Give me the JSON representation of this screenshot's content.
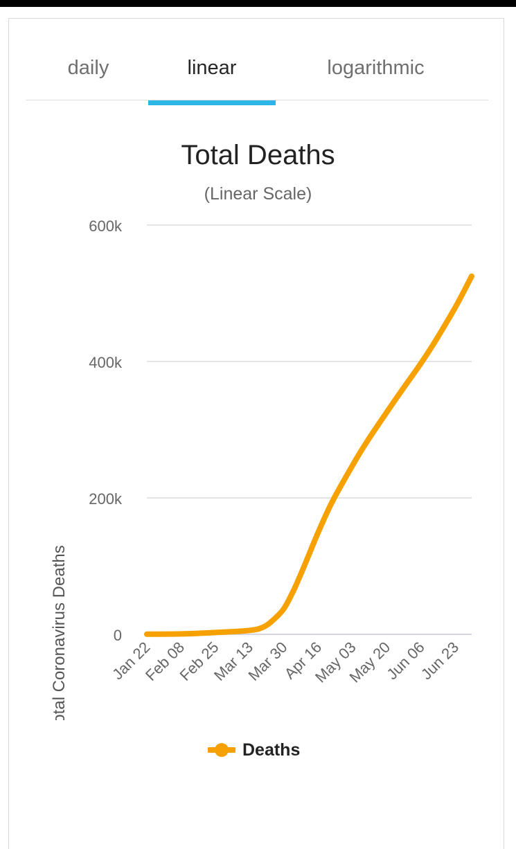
{
  "tabs": [
    {
      "label": "daily",
      "active": false
    },
    {
      "label": "linear",
      "active": true
    },
    {
      "label": "logarithmic",
      "active": false
    }
  ],
  "colors": {
    "accent": "#2bb6e6",
    "series": "#f7a100"
  },
  "chart_data": {
    "type": "line",
    "title": "Total Deaths",
    "subtitle": "(Linear Scale)",
    "xlabel": "",
    "ylabel": "Total Coronavirus Deaths",
    "ylim": [
      0,
      600000
    ],
    "yticks": [
      0,
      200000,
      400000,
      600000
    ],
    "ytick_labels": [
      "0",
      "200k",
      "400k",
      "600k"
    ],
    "xtick_labels": [
      "Jan 22",
      "Feb 08",
      "Feb 25",
      "Mar 13",
      "Mar 30",
      "Apr 16",
      "May 03",
      "May 20",
      "Jun 06",
      "Jun 23"
    ],
    "grid": true,
    "legend_position": "bottom",
    "series": [
      {
        "name": "Deaths",
        "color": "#f7a100",
        "x": [
          "Jan 22",
          "Feb 08",
          "Feb 25",
          "Mar 13",
          "Mar 20",
          "Mar 25",
          "Mar 30",
          "Apr 04",
          "Apr 09",
          "Apr 16",
          "Apr 23",
          "May 03",
          "May 10",
          "May 20",
          "May 27",
          "Jun 06",
          "Jun 13",
          "Jun 23",
          "Jul 01"
        ],
        "values": [
          200,
          600,
          2700,
          5800,
          11000,
          22000,
          38000,
          66000,
          100000,
          150000,
          195000,
          248000,
          282000,
          326000,
          356000,
          398000,
          430000,
          480000,
          525000
        ]
      }
    ]
  },
  "legend": {
    "label": "Deaths"
  }
}
